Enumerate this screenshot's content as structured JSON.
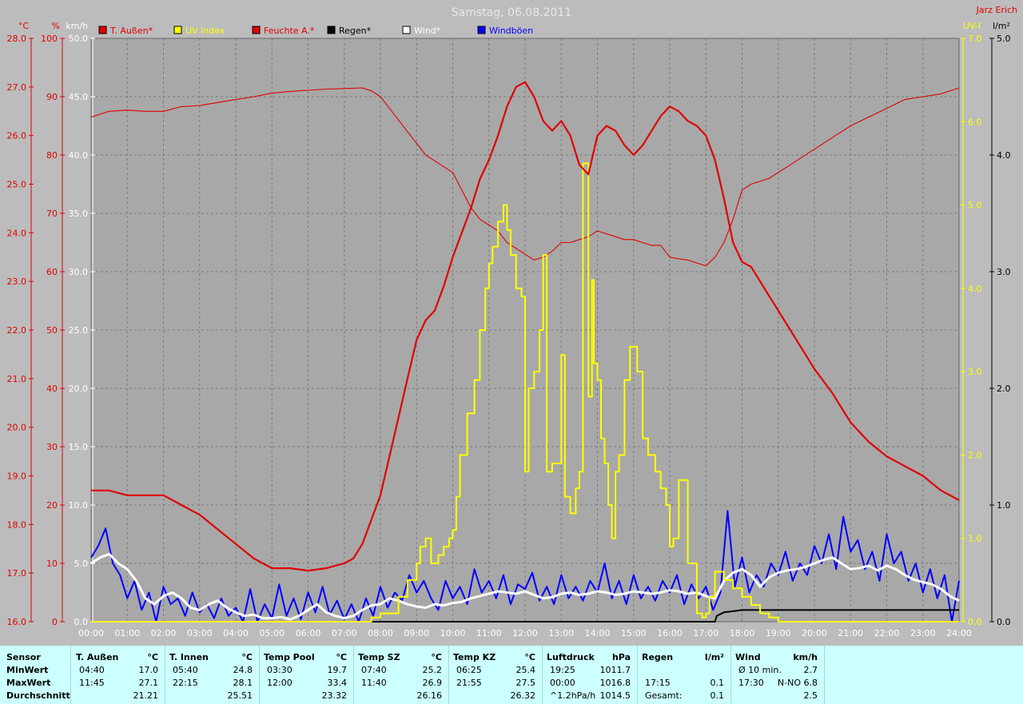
{
  "title": "Samstag, 06.08.2011",
  "author": "Jarz Erich",
  "colors": {
    "bg": "#bcbcbc",
    "plot": "#a8a8a8",
    "grid": "#7a7a7a",
    "red": "#e00000",
    "yellow": "#ffff00",
    "black": "#000000",
    "white": "#ffffff",
    "blue": "#0000ff",
    "stats_bg": "#ccffff"
  },
  "left_axes": {
    "celsius": {
      "unit": "°C",
      "ticks": [
        "28.0",
        "27.0",
        "26.0",
        "25.0",
        "24.0",
        "23.0",
        "22.0",
        "21.0",
        "20.0",
        "19.0",
        "18.0",
        "17.0",
        "16.0"
      ],
      "range": [
        16,
        28
      ]
    },
    "percent": {
      "unit": "%",
      "ticks": [
        "100",
        "90",
        "80",
        "70",
        "60",
        "50",
        "40",
        "30",
        "20",
        "10",
        "0"
      ],
      "range": [
        0,
        100
      ]
    },
    "kmh": {
      "unit": "km/h",
      "ticks": [
        "50.0",
        "45.0",
        "40.0",
        "35.0",
        "30.0",
        "25.0",
        "20.0",
        "15.0",
        "10.0",
        "5.0",
        "0.0"
      ],
      "range": [
        0,
        50
      ]
    }
  },
  "right_axes": {
    "uv": {
      "unit": "UV-I",
      "ticks": [
        "7.0",
        "6.0",
        "5.0",
        "4.0",
        "3.0",
        "2.0",
        "1.0",
        "0.0"
      ],
      "range": [
        0,
        7
      ]
    },
    "rain": {
      "unit": "l/m²",
      "ticks": [
        "5.0",
        "4.0",
        "3.0",
        "2.0",
        "1.0",
        "0.0"
      ],
      "range": [
        0,
        5
      ]
    }
  },
  "x_ticks": [
    "00:00",
    "01:00",
    "02:00",
    "03:00",
    "04:00",
    "05:00",
    "06:00",
    "07:00",
    "08:00",
    "09:00",
    "10:00",
    "11:00",
    "12:00",
    "13:00",
    "14:00",
    "15:00",
    "16:00",
    "17:00",
    "18:00",
    "19:00",
    "20:00",
    "21:00",
    "22:00",
    "23:00",
    "24:00"
  ],
  "legend": [
    {
      "label": "T. Außen*",
      "color": "#e00000"
    },
    {
      "label": "UV Index",
      "color": "#ffff00"
    },
    {
      "label": "Feuchte A.*",
      "color": "#e00000"
    },
    {
      "label": "Regen*",
      "color": "#000000"
    },
    {
      "label": "Wind*",
      "color": "#ffffff"
    },
    {
      "label": "Windböen",
      "color": "#0000ff"
    }
  ],
  "chart_data": {
    "type": "line",
    "x_unit": "hours",
    "xlim": [
      0,
      24
    ],
    "grid": true,
    "legend_position": "top",
    "series": [
      {
        "name": "T. Außen*",
        "axis": "°C",
        "color": "#e00000",
        "x": [
          0,
          0.5,
          1,
          1.5,
          2,
          2.5,
          3,
          3.5,
          4,
          4.5,
          5,
          5.5,
          6,
          6.5,
          7,
          7.25,
          7.5,
          7.75,
          8,
          8.25,
          8.5,
          8.75,
          9,
          9.25,
          9.5,
          9.75,
          10,
          10.25,
          10.5,
          10.75,
          11,
          11.25,
          11.5,
          11.75,
          12,
          12.25,
          12.5,
          12.75,
          13,
          13.25,
          13.5,
          13.75,
          14,
          14.25,
          14.5,
          14.75,
          15,
          15.25,
          15.5,
          15.75,
          16,
          16.25,
          16.5,
          16.75,
          17,
          17.25,
          17.5,
          17.75,
          18,
          18.25,
          18.5,
          18.75,
          19,
          19.5,
          20,
          20.5,
          21,
          21.5,
          22,
          22.5,
          23,
          23.5,
          24
        ],
        "y": [
          18.7,
          18.7,
          18.6,
          18.6,
          18.6,
          18.4,
          18.2,
          17.9,
          17.6,
          17.3,
          17.1,
          17.1,
          17.05,
          17.1,
          17.2,
          17.3,
          17.6,
          18.1,
          18.6,
          19.4,
          20.2,
          21.0,
          21.8,
          22.2,
          22.4,
          22.9,
          23.5,
          24.0,
          24.5,
          25.1,
          25.5,
          26.0,
          26.6,
          27.0,
          27.1,
          26.8,
          26.3,
          26.1,
          26.3,
          26.0,
          25.4,
          25.2,
          26.0,
          26.2,
          26.1,
          25.8,
          25.6,
          25.8,
          26.1,
          26.4,
          26.6,
          26.5,
          26.3,
          26.2,
          26.0,
          25.5,
          24.7,
          23.8,
          23.4,
          23.3,
          23.0,
          22.7,
          22.4,
          21.8,
          21.2,
          20.7,
          20.1,
          19.7,
          19.4,
          19.2,
          19.0,
          18.7,
          18.5
        ]
      },
      {
        "name": "Feuchte A.*",
        "axis": "%",
        "color": "#e00000",
        "x": [
          0,
          0.5,
          1,
          1.5,
          2,
          2.5,
          3,
          3.5,
          4,
          4.5,
          5,
          5.5,
          6,
          6.5,
          7,
          7.5,
          7.75,
          8,
          8.25,
          8.5,
          8.75,
          9,
          9.25,
          9.5,
          9.75,
          10,
          10.25,
          10.5,
          10.75,
          11,
          11.25,
          11.5,
          11.75,
          12,
          12.25,
          12.5,
          12.75,
          13,
          13.25,
          13.5,
          13.75,
          14,
          14.25,
          14.5,
          14.75,
          15,
          15.25,
          15.5,
          15.75,
          16,
          16.25,
          16.5,
          16.75,
          17,
          17.25,
          17.5,
          17.75,
          18,
          18.25,
          18.5,
          18.75,
          19,
          19.5,
          20,
          20.5,
          21,
          21.5,
          22,
          22.5,
          23,
          23.5,
          24
        ],
        "y": [
          86.5,
          87.5,
          87.7,
          87.5,
          87.5,
          88.3,
          88.5,
          89,
          89.5,
          90,
          90.6,
          90.9,
          91.1,
          91.3,
          91.4,
          91.5,
          91,
          90,
          88,
          86,
          84,
          82,
          80,
          79,
          78,
          77,
          74,
          71,
          69,
          68,
          67,
          65,
          64,
          63,
          62,
          62.5,
          63.5,
          65,
          65,
          65.5,
          66,
          67,
          66.5,
          66,
          65.5,
          65.5,
          65,
          64.5,
          64.5,
          62.5,
          62.2,
          62,
          61.5,
          61,
          62.5,
          65,
          69,
          74,
          75,
          75.5,
          76,
          77,
          79,
          81,
          83,
          85,
          86.5,
          88,
          89.5,
          90,
          90.5,
          91.5
        ]
      },
      {
        "name": "UV Index",
        "axis": "UV-I",
        "color": "#ffff00",
        "step": true,
        "x": [
          0,
          7.75,
          8,
          8.5,
          8.75,
          9,
          9.1,
          9.25,
          9.4,
          9.6,
          9.75,
          9.9,
          10,
          10.1,
          10.2,
          10.4,
          10.6,
          10.75,
          10.9,
          11,
          11.1,
          11.25,
          11.4,
          11.5,
          11.6,
          11.75,
          11.9,
          12,
          12.1,
          12.25,
          12.4,
          12.5,
          12.6,
          12.75,
          12.9,
          13,
          13.1,
          13.25,
          13.4,
          13.5,
          13.6,
          13.75,
          13.85,
          13.9,
          14,
          14.1,
          14.2,
          14.3,
          14.4,
          14.5,
          14.6,
          14.75,
          14.9,
          15,
          15.1,
          15.25,
          15.4,
          15.6,
          15.75,
          15.9,
          16,
          16.1,
          16.25,
          16.5,
          16.75,
          16.9,
          17,
          17.1,
          17.25,
          17.5,
          17.75,
          18,
          18.25,
          18.5,
          18.75,
          19,
          19.5,
          24
        ],
        "y": [
          0,
          0.05,
          0.1,
          0.3,
          0.5,
          0.7,
          0.9,
          1.0,
          0.7,
          0.8,
          0.9,
          1.0,
          1.1,
          1.5,
          2.0,
          2.5,
          2.9,
          3.5,
          4.0,
          4.3,
          4.5,
          4.8,
          5.0,
          4.7,
          4.4,
          4.0,
          3.9,
          1.8,
          2.8,
          3.0,
          3.5,
          4.4,
          1.8,
          1.9,
          1.9,
          3.2,
          1.5,
          1.3,
          1.6,
          1.8,
          5.5,
          2.7,
          4.1,
          3.1,
          2.9,
          2.2,
          1.9,
          1.4,
          1.0,
          1.8,
          2.0,
          2.9,
          3.3,
          3.3,
          3.0,
          2.2,
          2.0,
          1.8,
          1.6,
          1.4,
          0.9,
          1.0,
          1.7,
          0.7,
          0.1,
          0.05,
          0.1,
          0.3,
          0.6,
          0.5,
          0.4,
          0.3,
          0.2,
          0.1,
          0.05,
          0,
          0,
          0
        ]
      },
      {
        "name": "Regen*",
        "axis": "l/m²",
        "color": "#000000",
        "x": [
          0,
          17.25,
          17.3,
          17.5,
          17.75,
          18,
          18.5,
          19,
          24
        ],
        "y": [
          0,
          0,
          0.05,
          0.08,
          0.09,
          0.1,
          0.1,
          0.1,
          0.1
        ]
      },
      {
        "name": "Wind*",
        "axis": "km/h",
        "color": "#ffffff",
        "x": [
          0,
          0.25,
          0.5,
          0.75,
          1,
          1.25,
          1.5,
          1.75,
          2,
          2.25,
          2.5,
          2.75,
          3,
          3.25,
          3.5,
          3.75,
          4,
          4.25,
          4.5,
          4.75,
          5,
          5.25,
          5.5,
          5.75,
          6,
          6.25,
          6.5,
          6.75,
          7,
          7.25,
          7.5,
          7.75,
          8,
          8.25,
          8.5,
          8.75,
          9,
          9.25,
          9.5,
          9.75,
          10,
          10.25,
          10.5,
          10.75,
          11,
          11.25,
          11.5,
          11.75,
          12,
          12.25,
          12.5,
          12.75,
          13,
          13.25,
          13.5,
          13.75,
          14,
          14.25,
          14.5,
          14.75,
          15,
          15.25,
          15.5,
          15.75,
          16,
          16.25,
          16.5,
          16.75,
          17,
          17.25,
          17.5,
          17.75,
          18,
          18.25,
          18.5,
          18.75,
          19,
          19.25,
          19.5,
          19.75,
          20,
          20.25,
          20.5,
          20.75,
          21,
          21.25,
          21.5,
          21.75,
          22,
          22.25,
          22.5,
          22.75,
          23,
          23.25,
          23.5,
          23.75,
          24
        ],
        "y": [
          5.0,
          5.5,
          5.8,
          5.0,
          4.5,
          3.5,
          2.0,
          1.5,
          2.2,
          2.5,
          2.0,
          1.2,
          1.0,
          1.5,
          1.8,
          1.2,
          0.8,
          0.5,
          0.6,
          0.3,
          0.3,
          0.4,
          0.2,
          0.5,
          1.0,
          1.5,
          0.8,
          0.5,
          0.3,
          0.5,
          1.0,
          1.4,
          1.5,
          2.0,
          1.8,
          1.5,
          1.3,
          1.2,
          1.5,
          1.4,
          1.6,
          1.7,
          2.0,
          2.2,
          2.4,
          2.6,
          2.5,
          2.4,
          2.6,
          2.3,
          2.0,
          2.1,
          2.4,
          2.5,
          2.3,
          2.4,
          2.6,
          2.5,
          2.3,
          2.4,
          2.6,
          2.5,
          2.4,
          2.5,
          2.7,
          2.6,
          2.4,
          2.5,
          2.2,
          2.0,
          3.5,
          4.2,
          4.5,
          4.0,
          3.0,
          3.8,
          4.2,
          4.4,
          4.5,
          4.7,
          5.0,
          5.3,
          5.5,
          5.0,
          4.5,
          4.6,
          4.8,
          4.4,
          4.8,
          4.5,
          4.0,
          3.6,
          3.4,
          3.2,
          2.8,
          2.2,
          1.8
        ]
      },
      {
        "name": "Windböen",
        "axis": "km/h",
        "color": "#0000ff",
        "x": [
          0,
          0.2,
          0.4,
          0.6,
          0.8,
          1,
          1.2,
          1.4,
          1.6,
          1.8,
          2,
          2.2,
          2.4,
          2.6,
          2.8,
          3,
          3.2,
          3.4,
          3.6,
          3.8,
          4,
          4.2,
          4.4,
          4.6,
          4.8,
          5,
          5.2,
          5.4,
          5.6,
          5.8,
          6,
          6.2,
          6.4,
          6.6,
          6.8,
          7,
          7.2,
          7.4,
          7.6,
          7.8,
          8,
          8.2,
          8.4,
          8.6,
          8.8,
          9,
          9.2,
          9.4,
          9.6,
          9.8,
          10,
          10.2,
          10.4,
          10.6,
          10.8,
          11,
          11.2,
          11.4,
          11.6,
          11.8,
          12,
          12.2,
          12.4,
          12.6,
          12.8,
          13,
          13.2,
          13.4,
          13.6,
          13.8,
          14,
          14.2,
          14.4,
          14.6,
          14.8,
          15,
          15.2,
          15.4,
          15.6,
          15.8,
          16,
          16.2,
          16.4,
          16.6,
          16.8,
          17,
          17.2,
          17.4,
          17.6,
          17.8,
          18,
          18.2,
          18.4,
          18.6,
          18.8,
          19,
          19.2,
          19.4,
          19.6,
          19.8,
          20,
          20.2,
          20.4,
          20.6,
          20.8,
          21,
          21.2,
          21.4,
          21.6,
          21.8,
          22,
          22.2,
          22.4,
          22.6,
          22.8,
          23,
          23.2,
          23.4,
          23.6,
          23.8,
          24
        ],
        "y": [
          5.5,
          6.5,
          8.0,
          5.0,
          4.0,
          2.0,
          3.5,
          1.0,
          2.5,
          0.0,
          3.0,
          1.5,
          2.0,
          0.5,
          2.5,
          0.8,
          1.5,
          0.3,
          2.0,
          0.5,
          1.2,
          0.0,
          2.8,
          0.0,
          1.5,
          0.3,
          3.2,
          0.5,
          2.0,
          0.2,
          2.5,
          0.8,
          3.0,
          0.6,
          1.8,
          0.2,
          1.5,
          0.0,
          2.0,
          0.5,
          3.0,
          1.2,
          2.5,
          1.8,
          4.0,
          2.5,
          3.5,
          2.0,
          1.0,
          3.5,
          2.0,
          3.0,
          1.5,
          4.5,
          2.5,
          3.5,
          2.0,
          4.0,
          1.5,
          3.2,
          2.8,
          4.2,
          1.8,
          3.0,
          1.5,
          4.0,
          2.0,
          3.0,
          1.8,
          3.5,
          2.5,
          5.0,
          2.0,
          3.5,
          1.5,
          4.0,
          2.0,
          3.0,
          1.8,
          3.5,
          2.5,
          4.0,
          1.5,
          3.2,
          2.0,
          3.0,
          1.0,
          2.5,
          9.5,
          3.0,
          5.5,
          2.5,
          4.0,
          3.0,
          5.0,
          4.0,
          6.0,
          3.5,
          5.0,
          4.0,
          6.5,
          5.0,
          7.5,
          4.5,
          9.0,
          6.0,
          7.0,
          4.5,
          6.0,
          3.5,
          7.5,
          5.0,
          6.0,
          3.5,
          5.0,
          2.5,
          4.5,
          2.0,
          4.0,
          0.0,
          3.5
        ]
      }
    ]
  },
  "stats": {
    "rows": [
      "Sensor",
      "MinWert",
      "MaxWert",
      "Durchschnitt"
    ],
    "groups": [
      {
        "name": "T. Außen",
        "unit": "°C",
        "min": [
          "04:40",
          "17.0"
        ],
        "max": [
          "11:45",
          "27.1"
        ],
        "avg": [
          "",
          "21.21"
        ]
      },
      {
        "name": "T. Innen",
        "unit": "°C",
        "min": [
          "05:40",
          "24.8"
        ],
        "max": [
          "22:15",
          "28.1"
        ],
        "avg": [
          "",
          "25.51"
        ]
      },
      {
        "name": "Temp Pool",
        "unit": "°C",
        "min": [
          "03:30",
          "19.7"
        ],
        "max": [
          "12:00",
          "33.4"
        ],
        "avg": [
          "",
          "23.32"
        ]
      },
      {
        "name": "Temp SZ",
        "unit": "°C",
        "min": [
          "07:40",
          "25.2"
        ],
        "max": [
          "11:40",
          "26.9"
        ],
        "avg": [
          "",
          "26.16"
        ]
      },
      {
        "name": "Temp KZ",
        "unit": "°C",
        "min": [
          "06:25",
          "25.4"
        ],
        "max": [
          "21:55",
          "27.5"
        ],
        "avg": [
          "",
          "26.32"
        ]
      },
      {
        "name": "Luftdruck",
        "unit": "hPa",
        "min": [
          "19:25",
          "1011.7"
        ],
        "max": [
          "00:00",
          "1016.8"
        ],
        "avg": [
          "^1.2hPa/h",
          "1014.5"
        ]
      },
      {
        "name": "Regen",
        "unit": "l/m²",
        "min": [
          "",
          ""
        ],
        "max": [
          "17:15",
          "0.1"
        ],
        "avg": [
          "Gesamt:",
          "0.1"
        ]
      },
      {
        "name": "Wind",
        "unit": "km/h",
        "min": [
          "Ø 10 min.",
          "2.7"
        ],
        "max": [
          "17:30",
          "N-NO 6.8"
        ],
        "avg": [
          "",
          "2.5"
        ]
      }
    ]
  }
}
